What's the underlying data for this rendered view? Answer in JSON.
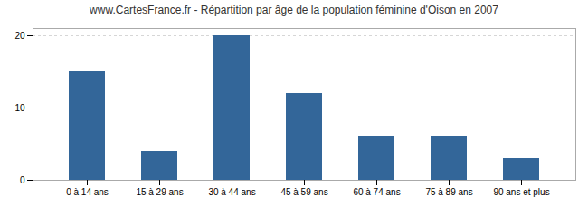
{
  "chart_data": {
    "type": "bar",
    "title": "www.CartesFrance.fr - Répartition par âge de la population féminine d'Oison en 2007",
    "categories": [
      "0 à 14 ans",
      "15 à 29 ans",
      "30 à 44 ans",
      "45 à 59 ans",
      "60 à 74 ans",
      "75 à 89 ans",
      "90 ans et plus"
    ],
    "values": [
      15,
      4,
      20,
      12,
      6,
      6,
      3
    ],
    "color": "#336699",
    "ylim": [
      0,
      21
    ],
    "yticks": [
      0,
      10,
      20
    ],
    "grid": true
  }
}
